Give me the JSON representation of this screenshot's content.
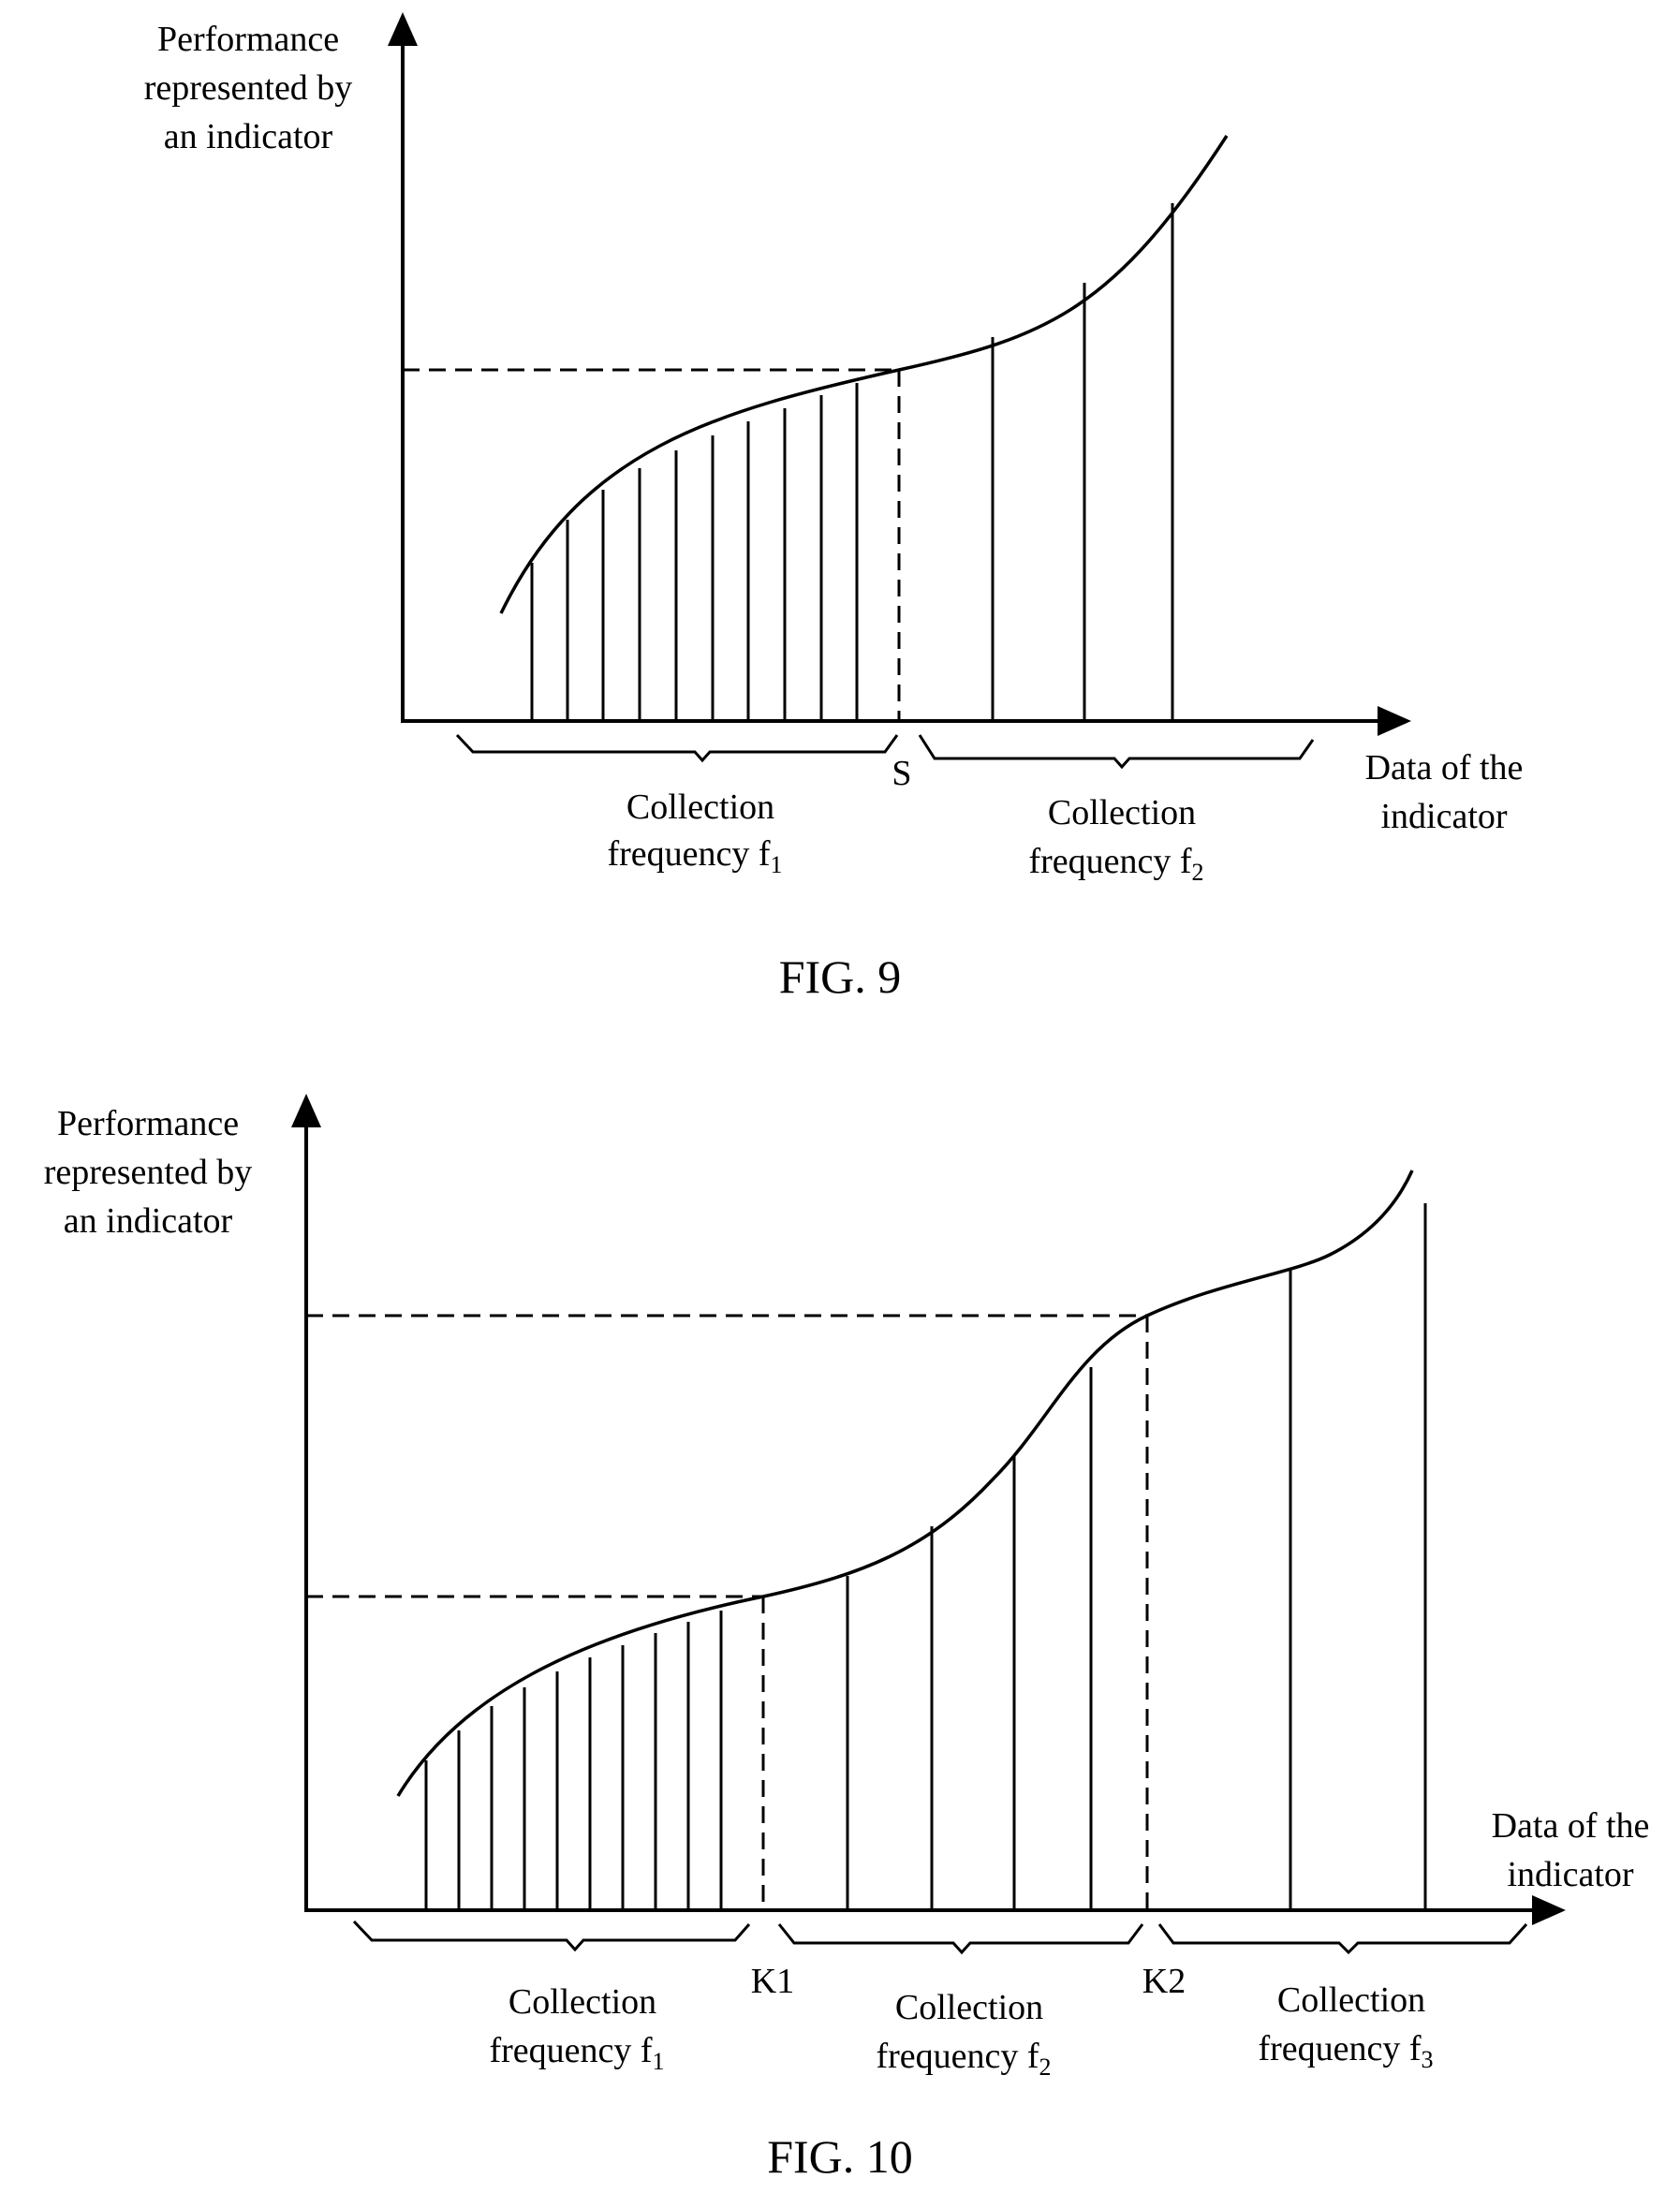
{
  "fig9": {
    "y_axis_label": [
      "Performance",
      "represented by",
      "an indicator"
    ],
    "x_axis_label": [
      "Data of the",
      "indicator"
    ],
    "threshold": "S",
    "range1": {
      "line1": "Collection",
      "line2": "frequency f",
      "sub": "1"
    },
    "range2": {
      "line1": "Collection",
      "line2": "frequency f",
      "sub": "2"
    },
    "caption": "FIG. 9"
  },
  "fig10": {
    "y_axis_label": [
      "Performance",
      "represented by",
      "an indicator"
    ],
    "x_axis_label": [
      "Data of the",
      "indicator"
    ],
    "threshold1": "K1",
    "threshold2": "K2",
    "range1": {
      "line1": "Collection",
      "line2": "frequency f",
      "sub": "1"
    },
    "range2": {
      "line1": "Collection",
      "line2": "frequency f",
      "sub": "2"
    },
    "range3": {
      "line1": "Collection",
      "line2": "frequency f",
      "sub": "3"
    },
    "caption": "FIG. 10"
  }
}
